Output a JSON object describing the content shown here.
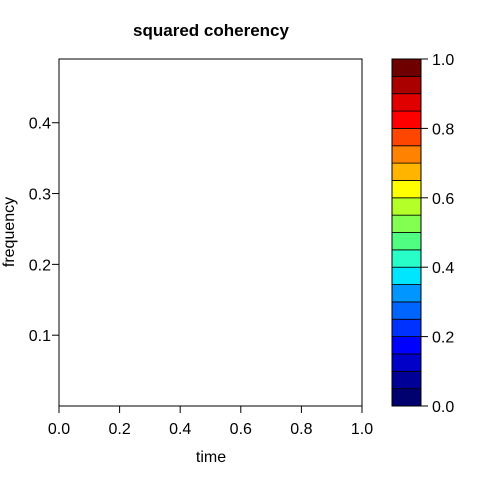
{
  "chart_data": {
    "type": "heatmap",
    "title": "squared coherency",
    "xlabel": "time",
    "ylabel": "frequency",
    "xlim": [
      0.0,
      1.0
    ],
    "ylim": [
      0.0,
      0.49
    ],
    "x_ticks": [
      "0.0",
      "0.2",
      "0.4",
      "0.6",
      "0.8",
      "1.0"
    ],
    "x_tick_values": [
      0.0,
      0.2,
      0.4,
      0.6,
      0.8,
      1.0
    ],
    "y_ticks": [
      "0.1",
      "0.2",
      "0.3",
      "0.4"
    ],
    "y_tick_values": [
      0.1,
      0.2,
      0.3,
      0.4
    ],
    "grid": false,
    "values": [],
    "colorbar": {
      "range": [
        0.0,
        1.0
      ],
      "ticks": [
        "0.0",
        "0.2",
        "0.4",
        "0.6",
        "0.8",
        "1.0"
      ],
      "tick_values": [
        0.0,
        0.2,
        0.4,
        0.6,
        0.8,
        1.0
      ],
      "colors": [
        "#00006e",
        "#000096",
        "#0000c8",
        "#0000ff",
        "#0032ff",
        "#0064ff",
        "#0096ff",
        "#00e6ff",
        "#28ffc8",
        "#50ff82",
        "#82ff50",
        "#b4ff28",
        "#ffff00",
        "#ffb400",
        "#ff8200",
        "#ff4600",
        "#ff0000",
        "#e10000",
        "#aa0000",
        "#6e0000"
      ]
    }
  }
}
